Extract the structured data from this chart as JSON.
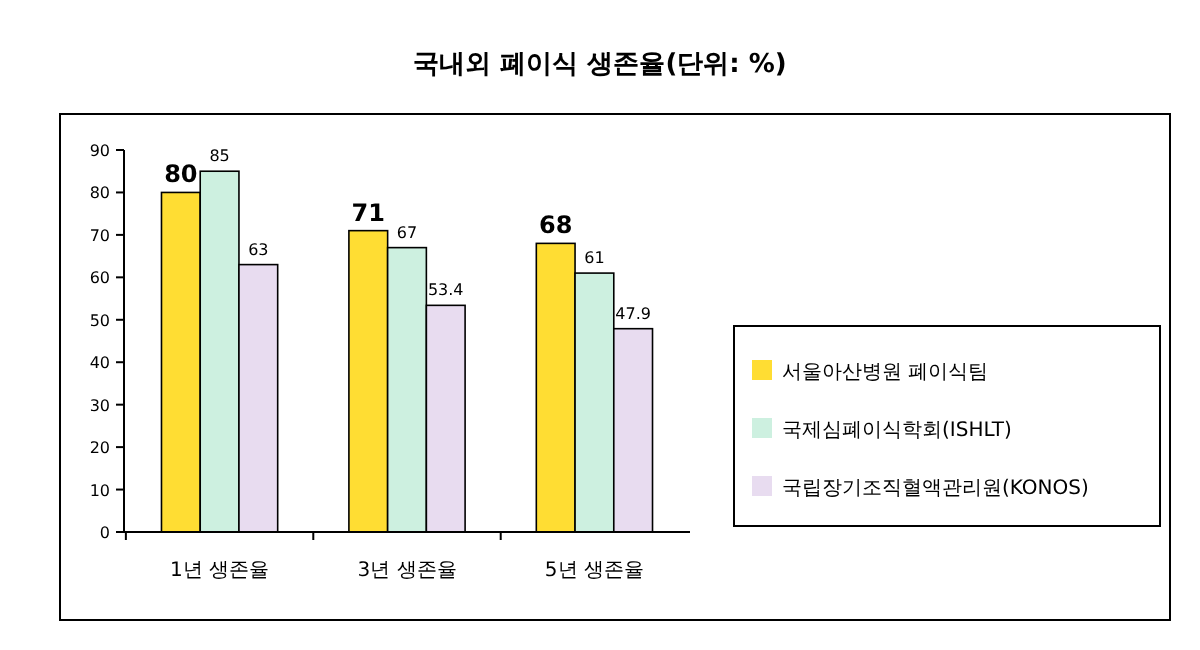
{
  "chart_data": {
    "type": "bar",
    "title": "국내외 폐이식 생존율(단위: %)",
    "categories": [
      "1년 생존율",
      "3년 생존율",
      "5년 생존율"
    ],
    "series": [
      {
        "name": "서울아산병원 폐이식팀",
        "color": "#ffdd33",
        "values": [
          80,
          71,
          68
        ]
      },
      {
        "name": "국제심폐이식학회(ISHLT)",
        "color": "#cdf0e0",
        "values": [
          85,
          67,
          61
        ]
      },
      {
        "name": "국립장기조직혈액관리원(KONOS)",
        "color": "#e8dcf0",
        "values": [
          63,
          53.4,
          47.9
        ]
      }
    ],
    "ylim": [
      0,
      90
    ],
    "yticks": [
      0,
      10,
      20,
      30,
      40,
      50,
      60,
      70,
      80,
      90
    ],
    "grid": false,
    "legend": "right",
    "data_labels": true
  }
}
